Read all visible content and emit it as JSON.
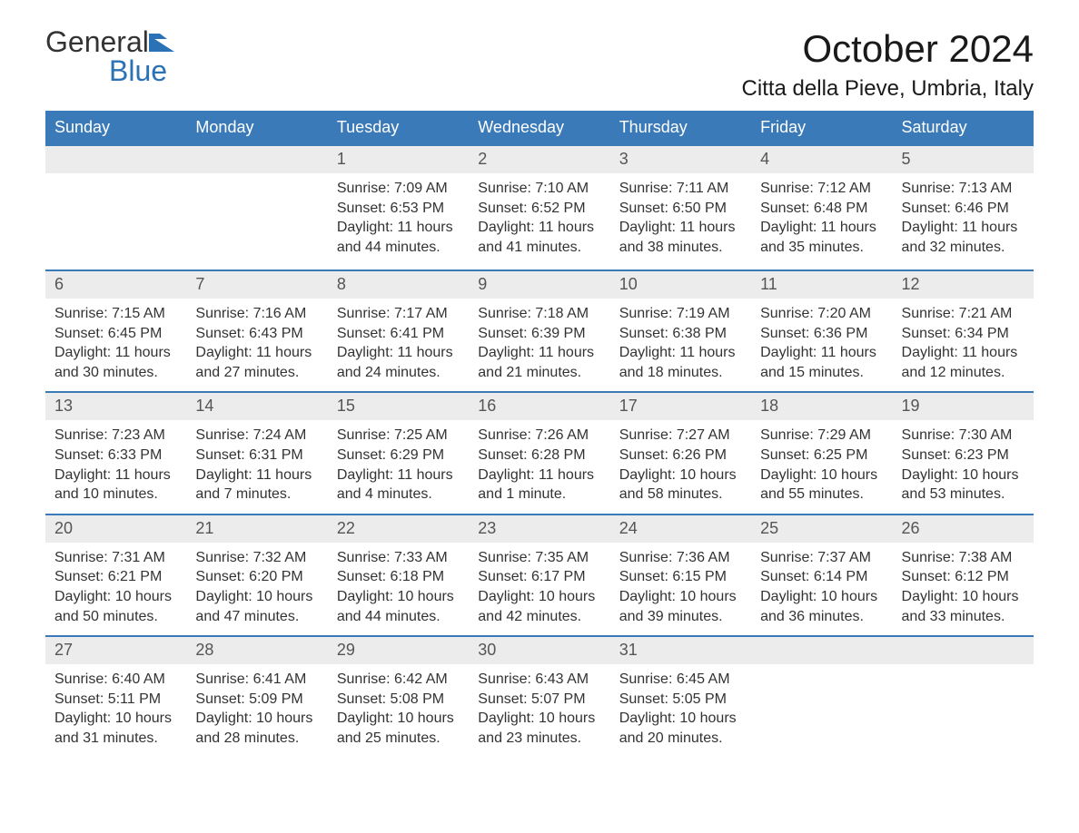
{
  "logo": {
    "text1": "General",
    "text2": "Blue"
  },
  "title": "October 2024",
  "location": "Citta della Pieve, Umbria, Italy",
  "colors": {
    "header_bg": "#3a7ab8",
    "header_text": "#ffffff",
    "daynum_bg": "#ececec",
    "text": "#333333",
    "accent": "#2a72b5"
  },
  "weekdays": [
    "Sunday",
    "Monday",
    "Tuesday",
    "Wednesday",
    "Thursday",
    "Friday",
    "Saturday"
  ],
  "weeks": [
    [
      {
        "day": "",
        "sunrise": "",
        "sunset": "",
        "daylight": ""
      },
      {
        "day": "",
        "sunrise": "",
        "sunset": "",
        "daylight": ""
      },
      {
        "day": "1",
        "sunrise": "Sunrise: 7:09 AM",
        "sunset": "Sunset: 6:53 PM",
        "daylight": "Daylight: 11 hours and 44 minutes."
      },
      {
        "day": "2",
        "sunrise": "Sunrise: 7:10 AM",
        "sunset": "Sunset: 6:52 PM",
        "daylight": "Daylight: 11 hours and 41 minutes."
      },
      {
        "day": "3",
        "sunrise": "Sunrise: 7:11 AM",
        "sunset": "Sunset: 6:50 PM",
        "daylight": "Daylight: 11 hours and 38 minutes."
      },
      {
        "day": "4",
        "sunrise": "Sunrise: 7:12 AM",
        "sunset": "Sunset: 6:48 PM",
        "daylight": "Daylight: 11 hours and 35 minutes."
      },
      {
        "day": "5",
        "sunrise": "Sunrise: 7:13 AM",
        "sunset": "Sunset: 6:46 PM",
        "daylight": "Daylight: 11 hours and 32 minutes."
      }
    ],
    [
      {
        "day": "6",
        "sunrise": "Sunrise: 7:15 AM",
        "sunset": "Sunset: 6:45 PM",
        "daylight": "Daylight: 11 hours and 30 minutes."
      },
      {
        "day": "7",
        "sunrise": "Sunrise: 7:16 AM",
        "sunset": "Sunset: 6:43 PM",
        "daylight": "Daylight: 11 hours and 27 minutes."
      },
      {
        "day": "8",
        "sunrise": "Sunrise: 7:17 AM",
        "sunset": "Sunset: 6:41 PM",
        "daylight": "Daylight: 11 hours and 24 minutes."
      },
      {
        "day": "9",
        "sunrise": "Sunrise: 7:18 AM",
        "sunset": "Sunset: 6:39 PM",
        "daylight": "Daylight: 11 hours and 21 minutes."
      },
      {
        "day": "10",
        "sunrise": "Sunrise: 7:19 AM",
        "sunset": "Sunset: 6:38 PM",
        "daylight": "Daylight: 11 hours and 18 minutes."
      },
      {
        "day": "11",
        "sunrise": "Sunrise: 7:20 AM",
        "sunset": "Sunset: 6:36 PM",
        "daylight": "Daylight: 11 hours and 15 minutes."
      },
      {
        "day": "12",
        "sunrise": "Sunrise: 7:21 AM",
        "sunset": "Sunset: 6:34 PM",
        "daylight": "Daylight: 11 hours and 12 minutes."
      }
    ],
    [
      {
        "day": "13",
        "sunrise": "Sunrise: 7:23 AM",
        "sunset": "Sunset: 6:33 PM",
        "daylight": "Daylight: 11 hours and 10 minutes."
      },
      {
        "day": "14",
        "sunrise": "Sunrise: 7:24 AM",
        "sunset": "Sunset: 6:31 PM",
        "daylight": "Daylight: 11 hours and 7 minutes."
      },
      {
        "day": "15",
        "sunrise": "Sunrise: 7:25 AM",
        "sunset": "Sunset: 6:29 PM",
        "daylight": "Daylight: 11 hours and 4 minutes."
      },
      {
        "day": "16",
        "sunrise": "Sunrise: 7:26 AM",
        "sunset": "Sunset: 6:28 PM",
        "daylight": "Daylight: 11 hours and 1 minute."
      },
      {
        "day": "17",
        "sunrise": "Sunrise: 7:27 AM",
        "sunset": "Sunset: 6:26 PM",
        "daylight": "Daylight: 10 hours and 58 minutes."
      },
      {
        "day": "18",
        "sunrise": "Sunrise: 7:29 AM",
        "sunset": "Sunset: 6:25 PM",
        "daylight": "Daylight: 10 hours and 55 minutes."
      },
      {
        "day": "19",
        "sunrise": "Sunrise: 7:30 AM",
        "sunset": "Sunset: 6:23 PM",
        "daylight": "Daylight: 10 hours and 53 minutes."
      }
    ],
    [
      {
        "day": "20",
        "sunrise": "Sunrise: 7:31 AM",
        "sunset": "Sunset: 6:21 PM",
        "daylight": "Daylight: 10 hours and 50 minutes."
      },
      {
        "day": "21",
        "sunrise": "Sunrise: 7:32 AM",
        "sunset": "Sunset: 6:20 PM",
        "daylight": "Daylight: 10 hours and 47 minutes."
      },
      {
        "day": "22",
        "sunrise": "Sunrise: 7:33 AM",
        "sunset": "Sunset: 6:18 PM",
        "daylight": "Daylight: 10 hours and 44 minutes."
      },
      {
        "day": "23",
        "sunrise": "Sunrise: 7:35 AM",
        "sunset": "Sunset: 6:17 PM",
        "daylight": "Daylight: 10 hours and 42 minutes."
      },
      {
        "day": "24",
        "sunrise": "Sunrise: 7:36 AM",
        "sunset": "Sunset: 6:15 PM",
        "daylight": "Daylight: 10 hours and 39 minutes."
      },
      {
        "day": "25",
        "sunrise": "Sunrise: 7:37 AM",
        "sunset": "Sunset: 6:14 PM",
        "daylight": "Daylight: 10 hours and 36 minutes."
      },
      {
        "day": "26",
        "sunrise": "Sunrise: 7:38 AM",
        "sunset": "Sunset: 6:12 PM",
        "daylight": "Daylight: 10 hours and 33 minutes."
      }
    ],
    [
      {
        "day": "27",
        "sunrise": "Sunrise: 6:40 AM",
        "sunset": "Sunset: 5:11 PM",
        "daylight": "Daylight: 10 hours and 31 minutes."
      },
      {
        "day": "28",
        "sunrise": "Sunrise: 6:41 AM",
        "sunset": "Sunset: 5:09 PM",
        "daylight": "Daylight: 10 hours and 28 minutes."
      },
      {
        "day": "29",
        "sunrise": "Sunrise: 6:42 AM",
        "sunset": "Sunset: 5:08 PM",
        "daylight": "Daylight: 10 hours and 25 minutes."
      },
      {
        "day": "30",
        "sunrise": "Sunrise: 6:43 AM",
        "sunset": "Sunset: 5:07 PM",
        "daylight": "Daylight: 10 hours and 23 minutes."
      },
      {
        "day": "31",
        "sunrise": "Sunrise: 6:45 AM",
        "sunset": "Sunset: 5:05 PM",
        "daylight": "Daylight: 10 hours and 20 minutes."
      },
      {
        "day": "",
        "sunrise": "",
        "sunset": "",
        "daylight": ""
      },
      {
        "day": "",
        "sunrise": "",
        "sunset": "",
        "daylight": ""
      }
    ]
  ]
}
